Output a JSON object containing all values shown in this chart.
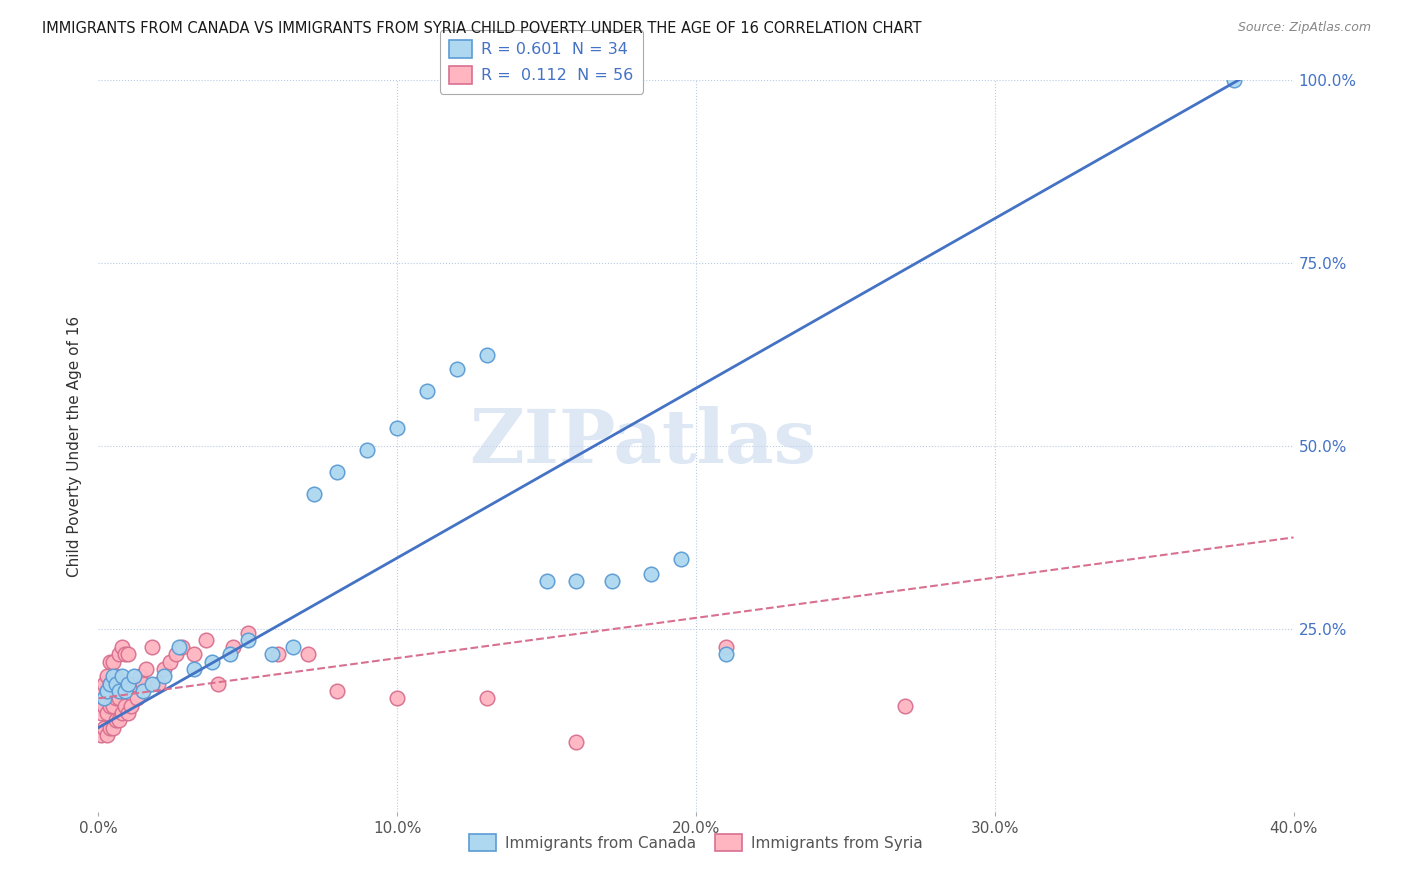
{
  "title": "IMMIGRANTS FROM CANADA VS IMMIGRANTS FROM SYRIA CHILD POVERTY UNDER THE AGE OF 16 CORRELATION CHART",
  "source": "Source: ZipAtlas.com",
  "ylabel": "Child Poverty Under the Age of 16",
  "xlim": [
    0.0,
    0.4
  ],
  "ylim": [
    0.0,
    1.0
  ],
  "xtick_labels": [
    "0.0%",
    "10.0%",
    "20.0%",
    "30.0%",
    "40.0%"
  ],
  "xtick_vals": [
    0.0,
    0.1,
    0.2,
    0.3,
    0.4
  ],
  "ytick_labels": [
    "25.0%",
    "50.0%",
    "75.0%",
    "100.0%"
  ],
  "ytick_vals": [
    0.25,
    0.5,
    0.75,
    1.0
  ],
  "canada_color": "#ADD8F0",
  "canada_edge_color": "#5B9BD5",
  "syria_color": "#FFB6C1",
  "syria_edge_color": "#D87090",
  "canada_line_color": "#4472C4",
  "syria_line_color": "#D87090",
  "canada_line_slope": 2.32,
  "canada_line_intercept": 0.115,
  "syria_line_slope": 0.55,
  "syria_line_intercept": 0.155,
  "R_canada": 0.601,
  "N_canada": 34,
  "R_syria": 0.112,
  "N_syria": 56,
  "watermark": "ZIPatlas",
  "watermark_color": "#C8D8EE",
  "canada_x": [
    0.002,
    0.003,
    0.004,
    0.005,
    0.006,
    0.007,
    0.008,
    0.009,
    0.01,
    0.012,
    0.015,
    0.018,
    0.022,
    0.027,
    0.032,
    0.038,
    0.044,
    0.05,
    0.058,
    0.065,
    0.072,
    0.08,
    0.09,
    0.1,
    0.11,
    0.12,
    0.13,
    0.15,
    0.16,
    0.172,
    0.185,
    0.195,
    0.21,
    0.38
  ],
  "canada_y": [
    0.155,
    0.165,
    0.175,
    0.185,
    0.175,
    0.165,
    0.185,
    0.165,
    0.175,
    0.185,
    0.165,
    0.175,
    0.185,
    0.225,
    0.195,
    0.205,
    0.215,
    0.235,
    0.215,
    0.225,
    0.435,
    0.465,
    0.495,
    0.525,
    0.575,
    0.605,
    0.625,
    0.315,
    0.315,
    0.315,
    0.325,
    0.345,
    0.215,
    1.0
  ],
  "syria_x": [
    0.001,
    0.001,
    0.001,
    0.002,
    0.002,
    0.002,
    0.003,
    0.003,
    0.003,
    0.003,
    0.004,
    0.004,
    0.004,
    0.004,
    0.005,
    0.005,
    0.005,
    0.005,
    0.006,
    0.006,
    0.006,
    0.007,
    0.007,
    0.007,
    0.008,
    0.008,
    0.008,
    0.009,
    0.009,
    0.01,
    0.01,
    0.011,
    0.012,
    0.013,
    0.014,
    0.015,
    0.016,
    0.018,
    0.02,
    0.022,
    0.024,
    0.026,
    0.028,
    0.032,
    0.036,
    0.04,
    0.045,
    0.05,
    0.06,
    0.07,
    0.08,
    0.1,
    0.13,
    0.16,
    0.21,
    0.27
  ],
  "syria_y": [
    0.105,
    0.135,
    0.165,
    0.115,
    0.145,
    0.175,
    0.105,
    0.135,
    0.165,
    0.185,
    0.115,
    0.145,
    0.175,
    0.205,
    0.115,
    0.145,
    0.175,
    0.205,
    0.125,
    0.155,
    0.185,
    0.125,
    0.155,
    0.215,
    0.135,
    0.165,
    0.225,
    0.145,
    0.215,
    0.135,
    0.215,
    0.145,
    0.175,
    0.155,
    0.185,
    0.175,
    0.195,
    0.225,
    0.175,
    0.195,
    0.205,
    0.215,
    0.225,
    0.215,
    0.235,
    0.175,
    0.225,
    0.245,
    0.215,
    0.215,
    0.165,
    0.155,
    0.155,
    0.095,
    0.225,
    0.145
  ]
}
